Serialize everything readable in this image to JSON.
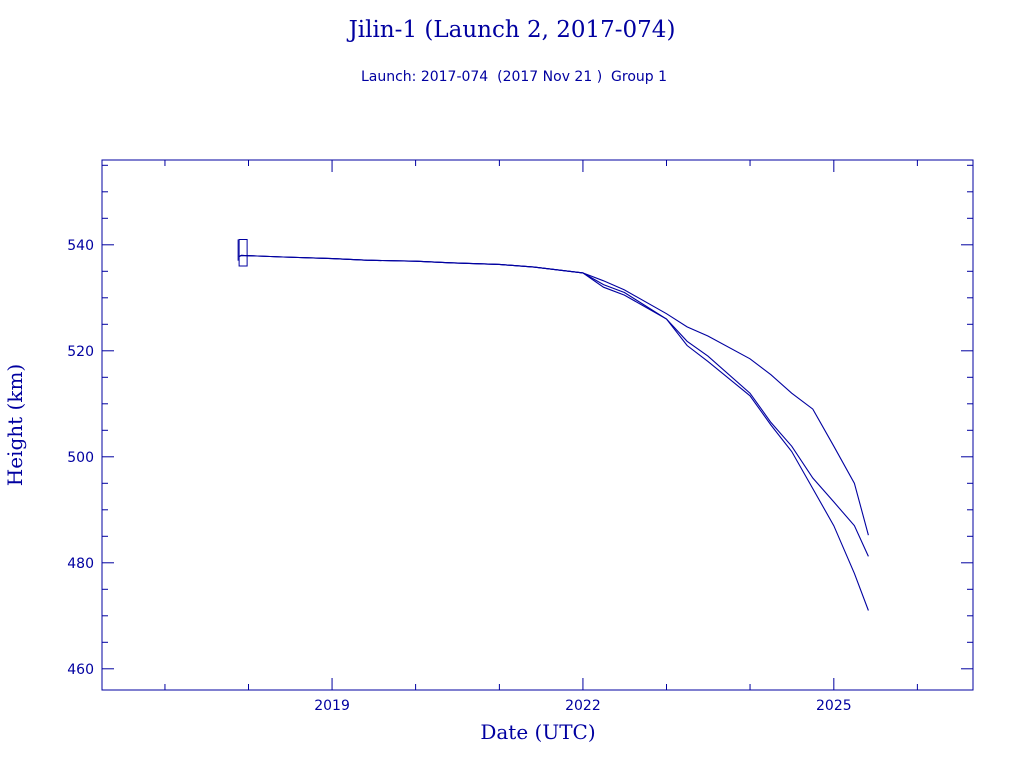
{
  "colors": {
    "ink": "#0000a0",
    "background": "#ffffff"
  },
  "chart_data": {
    "type": "line",
    "title": "Jilin-1 (Launch 2, 2017-074)",
    "subtitle": "Launch: 2017-074  (2017 Nov 21 )  Group 1",
    "xlabel": "Date (UTC)",
    "ylabel": "Height (km)",
    "xlim": [
      "2016-04-01",
      "2026-09-01"
    ],
    "ylim": [
      456,
      556
    ],
    "x_ticks": [
      {
        "date": "2019-01-01",
        "label": "2019"
      },
      {
        "date": "2022-01-01",
        "label": "2022"
      },
      {
        "date": "2025-01-01",
        "label": "2025"
      }
    ],
    "y_ticks": [
      460,
      480,
      500,
      520,
      540
    ],
    "grid": false,
    "legend": "none",
    "launch_marker": {
      "date": "2017-11-21",
      "height_min": 536,
      "height_max": 541
    },
    "series": [
      {
        "x": [
          "2017-11-21",
          "2017-12-01",
          "2018-06-01",
          "2019-01-01",
          "2019-06-01",
          "2020-01-01",
          "2020-06-01",
          "2021-01-01",
          "2021-06-01",
          "2022-01-01",
          "2022-04-01",
          "2022-07-01",
          "2023-01-01",
          "2023-04-01",
          "2023-07-01",
          "2024-01-01",
          "2024-04-01",
          "2024-07-01",
          "2024-10-01",
          "2025-01-01",
          "2025-04-01",
          "2025-06-01"
        ],
        "y": [
          537.8,
          538.0,
          537.7,
          537.4,
          537.1,
          536.9,
          536.6,
          536.3,
          535.8,
          534.7,
          533.2,
          531.5,
          527.0,
          524.5,
          522.8,
          518.5,
          515.5,
          512.0,
          509.0,
          502.0,
          495.0,
          485.2
        ]
      },
      {
        "x": [
          "2017-11-21",
          "2017-12-01",
          "2018-06-01",
          "2019-01-01",
          "2019-06-01",
          "2020-01-01",
          "2020-06-01",
          "2021-01-01",
          "2021-06-01",
          "2022-01-01",
          "2022-04-01",
          "2022-07-01",
          "2023-01-01",
          "2023-04-01",
          "2023-07-01",
          "2024-01-01",
          "2024-04-01",
          "2024-07-01",
          "2024-10-01",
          "2025-01-01",
          "2025-04-01",
          "2025-06-01"
        ],
        "y": [
          537.8,
          538.0,
          537.7,
          537.4,
          537.1,
          536.9,
          536.6,
          536.3,
          535.8,
          534.7,
          532.5,
          531.0,
          526.0,
          521.8,
          519.0,
          512.0,
          506.5,
          502.0,
          496.0,
          491.5,
          487.0,
          481.2
        ]
      },
      {
        "x": [
          "2017-11-21",
          "2017-12-01",
          "2018-06-01",
          "2019-01-01",
          "2019-06-01",
          "2020-01-01",
          "2020-06-01",
          "2021-01-01",
          "2021-06-01",
          "2022-01-01",
          "2022-04-01",
          "2022-07-01",
          "2023-01-01",
          "2023-04-01",
          "2023-07-01",
          "2024-01-01",
          "2024-04-01",
          "2024-07-01",
          "2024-10-01",
          "2025-01-01",
          "2025-04-01",
          "2025-06-01"
        ],
        "y": [
          537.8,
          538.0,
          537.7,
          537.4,
          537.1,
          536.9,
          536.6,
          536.3,
          535.8,
          534.7,
          532.0,
          530.5,
          526.0,
          521.0,
          518.0,
          511.5,
          506.0,
          501.0,
          494.0,
          487.0,
          478.0,
          471.0
        ]
      }
    ]
  }
}
